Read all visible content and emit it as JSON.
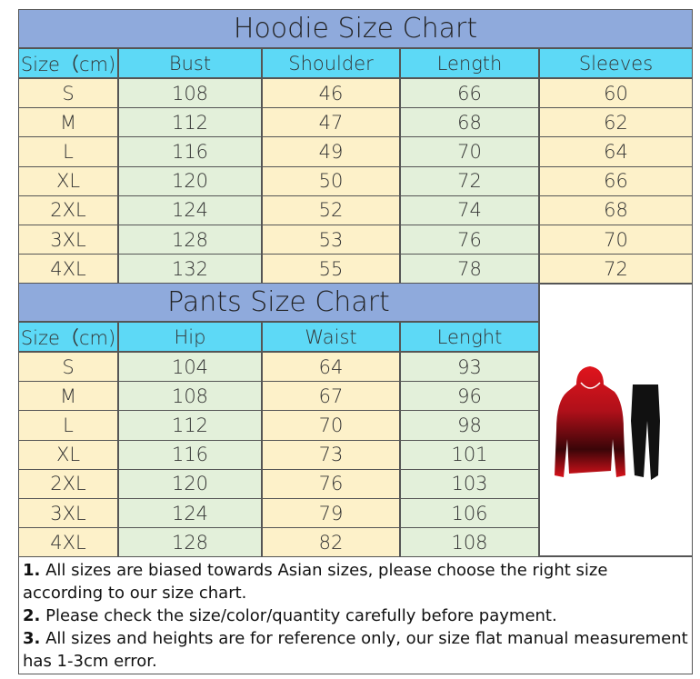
{
  "hoodie": {
    "title": "Hoodie Size Chart",
    "headers": [
      "Size（cm)",
      "Bust",
      "Shoulder",
      "Length",
      "Sleeves"
    ],
    "rows": [
      [
        "S",
        108,
        46,
        66,
        60
      ],
      [
        "M",
        112,
        47,
        68,
        62
      ],
      [
        "L",
        116,
        49,
        70,
        64
      ],
      [
        "XL",
        120,
        50,
        72,
        66
      ],
      [
        "2XL",
        124,
        52,
        74,
        68
      ],
      [
        "3XL",
        128,
        53,
        76,
        70
      ],
      [
        "4XL",
        132,
        55,
        78,
        72
      ]
    ]
  },
  "pants": {
    "title": "Pants Size Chart",
    "headers": [
      "Size（cm)",
      "Hip",
      "Waist",
      "Lenght"
    ],
    "rows": [
      [
        "S",
        104,
        64,
        93
      ],
      [
        "M",
        108,
        67,
        96
      ],
      [
        "L",
        112,
        70,
        98
      ],
      [
        "XL",
        116,
        73,
        101
      ],
      [
        "2XL",
        120,
        76,
        103
      ],
      [
        "3XL",
        124,
        79,
        106
      ],
      [
        "4XL",
        128,
        82,
        108
      ]
    ]
  },
  "notes": [
    {
      "num": "1.",
      "text": "All sizes are biased towards Asian sizes, please choose the right size according to our size chart."
    },
    {
      "num": "2.",
      "text": "Please check the size/color/quantity carefully before payment."
    },
    {
      "num": "3.",
      "text": "All sizes and heights are for reference only, our size flat manual measurement has 1-3cm error."
    }
  ]
}
